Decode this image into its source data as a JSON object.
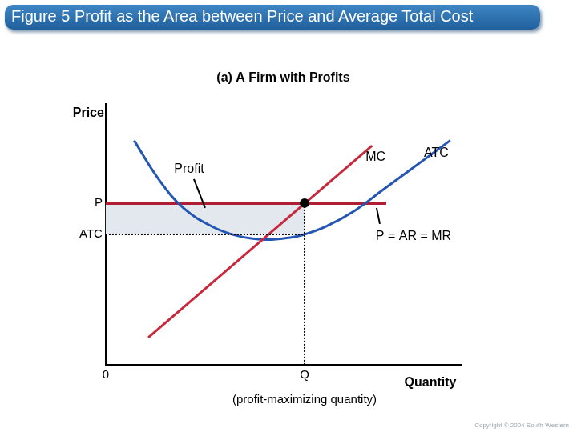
{
  "chart_data": {
    "type": "line",
    "title": "Figure 5 Profit as the Area between Price and Average Total Cost",
    "subtitle": "(a) A Firm with Profits",
    "x_label": "Quantity",
    "y_label": "Price",
    "xlim": [
      0,
      10
    ],
    "ylim": [
      0,
      10
    ],
    "xticks": [
      0,
      {
        "value": 5.6,
        "label": "Q"
      }
    ],
    "yticks": [
      {
        "value": 5.0,
        "label": "ATC"
      },
      {
        "value": 6.2,
        "label": "P"
      }
    ],
    "grid": false,
    "legend": "none",
    "series": [
      {
        "name": "MC",
        "color": "#c8283c",
        "line_style": "solid",
        "x": [
          1.2,
          7.5
        ],
        "values": [
          1.05,
          8.4
        ]
      },
      {
        "name": "ATC",
        "color": "#2456b4",
        "line_style": "solid",
        "x": [
          0.8,
          1.5,
          2.2,
          3.0,
          3.7,
          4.5,
          5.2,
          5.6,
          6.2,
          7.0,
          7.8,
          8.6,
          9.3,
          9.7
        ],
        "values": [
          8.6,
          7.1,
          6.0,
          5.3,
          4.95,
          4.8,
          4.88,
          5.0,
          5.3,
          5.9,
          6.7,
          7.5,
          8.2,
          8.6
        ]
      },
      {
        "name": "P = AR = MR",
        "color": "#b01e36",
        "line_style": "solid",
        "x": [
          0,
          7.9
        ],
        "values": [
          6.2,
          6.2
        ]
      }
    ],
    "profit": {
      "label": "Profit",
      "quantity": 5.6,
      "price": 6.2,
      "atc": 5.0
    },
    "quantity_note": "(profit-maximizing quantity)",
    "copyright": "Copyright © 2004 South-Western"
  }
}
